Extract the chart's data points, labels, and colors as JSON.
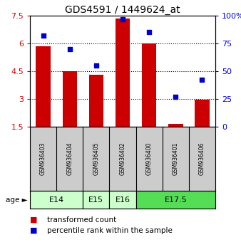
{
  "title": "GDS4591 / 1449624_at",
  "samples": [
    "GSM936403",
    "GSM936404",
    "GSM936405",
    "GSM936402",
    "GSM936400",
    "GSM936401",
    "GSM936406"
  ],
  "bar_values": [
    5.85,
    4.5,
    4.3,
    7.35,
    6.0,
    1.65,
    2.95
  ],
  "dot_values": [
    82,
    70,
    55,
    97,
    85,
    27,
    42
  ],
  "bar_color": "#cc0000",
  "dot_color": "#0000cc",
  "ylim_left": [
    1.5,
    7.5
  ],
  "ylim_right": [
    0,
    100
  ],
  "yticks_left": [
    1.5,
    3.0,
    4.5,
    6.0,
    7.5
  ],
  "ytick_labels_left": [
    "1.5",
    "3",
    "4.5",
    "6",
    "7.5"
  ],
  "yticks_right": [
    0,
    25,
    50,
    75,
    100
  ],
  "ytick_labels_right": [
    "0",
    "25",
    "50",
    "75",
    "100%"
  ],
  "hlines": [
    3.0,
    4.5,
    6.0
  ],
  "age_groups": [
    {
      "label": "E14",
      "start": 0,
      "end": 2,
      "color": "#ccffcc"
    },
    {
      "label": "E15",
      "start": 2,
      "end": 3,
      "color": "#ccffcc"
    },
    {
      "label": "E16",
      "start": 3,
      "end": 4,
      "color": "#ccffcc"
    },
    {
      "label": "E17.5",
      "start": 4,
      "end": 7,
      "color": "#55dd55"
    }
  ],
  "legend_bar_label": "transformed count",
  "legend_dot_label": "percentile rank within the sample",
  "bar_width": 0.55,
  "background_plot": "#ffffff",
  "sample_box_color": "#cccccc",
  "title_fontsize": 10,
  "tick_fontsize": 8,
  "sample_fontsize": 5.5,
  "age_fontsize": 8,
  "legend_fontsize": 7.5
}
